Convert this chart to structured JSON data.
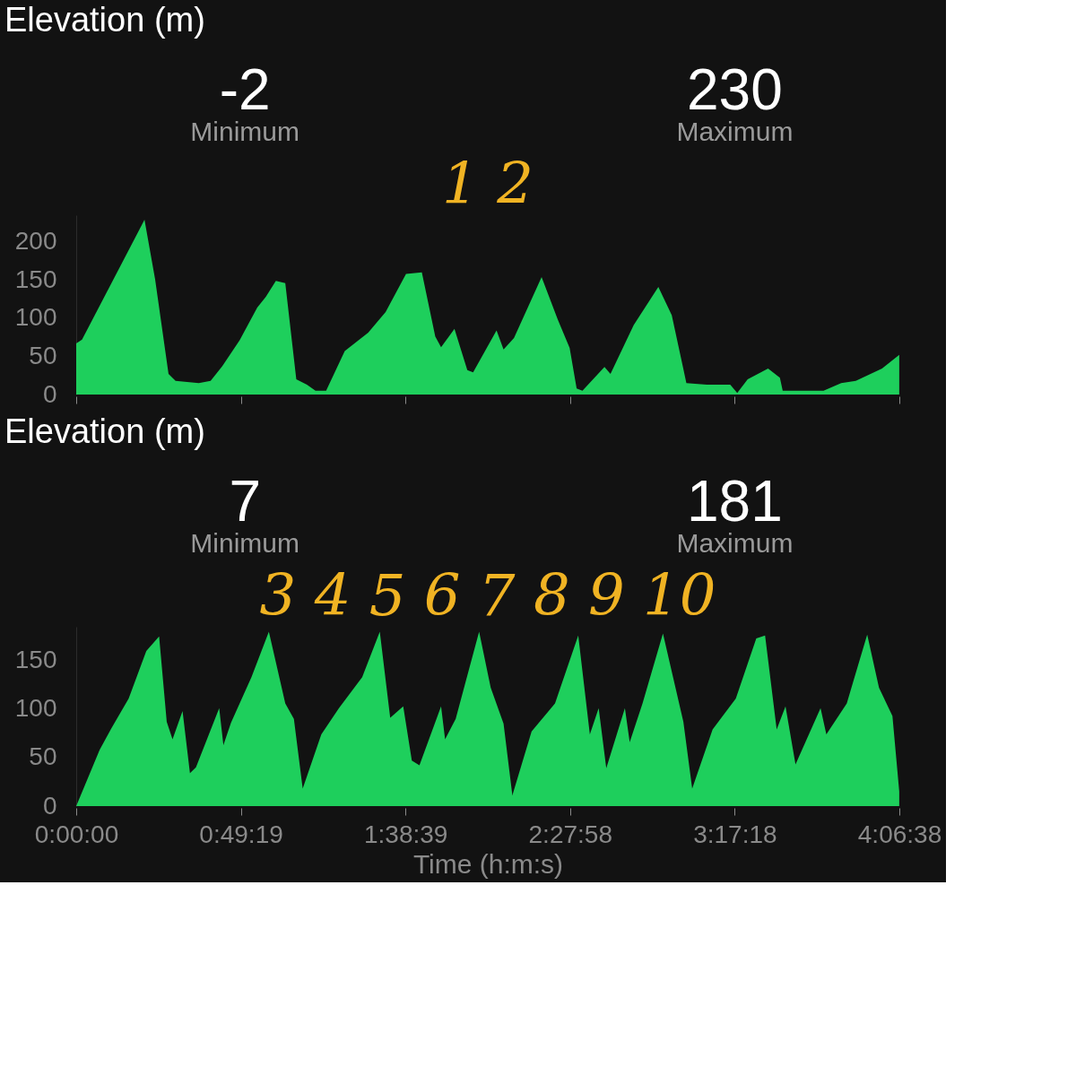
{
  "chart_data": [
    {
      "type": "area",
      "title": "Elevation (m)",
      "annotations": [
        "-2",
        "Minimum",
        "230",
        "Maximum",
        "1 2"
      ],
      "x": [
        0,
        0.029,
        0.341,
        0.394,
        0.461,
        0.496,
        0.612,
        0.671,
        0.729,
        0.816,
        0.904,
        0.947,
        0.997,
        1.044,
        1.099,
        1.152,
        1.195,
        1.248,
        1.341,
        1.458,
        1.545,
        1.647,
        1.726,
        1.793,
        1.822,
        1.889,
        1.953,
        1.982,
        2.099,
        2.134,
        2.186,
        2.324,
        2.405,
        2.464,
        2.499,
        2.528,
        2.638,
        2.668,
        2.784,
        2.907,
        2.974,
        3.047,
        3.149,
        3.266,
        3.301,
        3.353,
        3.455,
        3.514,
        3.528,
        3.732,
        3.82,
        3.893,
        4.024,
        4.11
      ],
      "series": [
        {
          "color": "#1ecf5c",
          "values": [
            67,
            72,
            229,
            151,
            27,
            18,
            15,
            18,
            37,
            71,
            114,
            128,
            149,
            146,
            20,
            13,
            5,
            5,
            57,
            81,
            108,
            158,
            160,
            76,
            62,
            86,
            32,
            29,
            84,
            59,
            74,
            154,
            98,
            61,
            8,
            5,
            36,
            27,
            91,
            141,
            104,
            15,
            13,
            13,
            2,
            20,
            34,
            22,
            5,
            5,
            15,
            18,
            34,
            52
          ]
        }
      ],
      "xlim": [
        0,
        4.11056
      ],
      "xticks": [
        {
          "value": 0,
          "label": null
        },
        {
          "value": 0.82194,
          "label": null
        },
        {
          "value": 1.64417,
          "label": null
        },
        {
          "value": 2.46611,
          "label": null
        },
        {
          "value": 3.28833,
          "label": null
        },
        {
          "value": 4.11056,
          "label": null
        }
      ],
      "ylim": [
        0,
        235
      ],
      "yticks": [
        0,
        50,
        100,
        150,
        200
      ],
      "tick_labels": "y"
    },
    {
      "type": "area",
      "title": "Elevation (m)",
      "xlabel": "Time (h:m:s)",
      "annotations": [
        "7",
        "Minimum",
        "181",
        "Maximum",
        "3 4 5 6 7 8 9 10"
      ],
      "x": [
        0,
        0.117,
        0.175,
        0.262,
        0.35,
        0.414,
        0.452,
        0.481,
        0.531,
        0.568,
        0.598,
        0.714,
        0.735,
        0.773,
        0.875,
        0.962,
        1.044,
        1.087,
        1.131,
        1.224,
        1.312,
        1.428,
        1.516,
        1.568,
        1.633,
        1.676,
        1.714,
        1.822,
        1.842,
        1.895,
        2.012,
        2.07,
        2.134,
        2.178,
        2.274,
        2.391,
        2.507,
        2.565,
        2.609,
        2.647,
        2.74,
        2.764,
        2.828,
        2.93,
        3.032,
        3.076,
        3.178,
        3.294,
        3.396,
        3.44,
        3.498,
        3.542,
        3.592,
        3.717,
        3.746,
        3.848,
        3.95,
        4.009,
        4.076,
        4.11
      ],
      "series": [
        {
          "color": "#1ecf5c",
          "values": [
            0,
            58,
            80,
            111,
            160,
            175,
            87,
            69,
            98,
            34,
            40,
            101,
            63,
            86,
            133,
            180,
            106,
            90,
            18,
            74,
            101,
            133,
            180,
            91,
            103,
            47,
            42,
            103,
            69,
            90,
            180,
            122,
            85,
            11,
            77,
            106,
            176,
            74,
            101,
            39,
            101,
            66,
            106,
            178,
            87,
            18,
            79,
            111,
            173,
            176,
            79,
            103,
            43,
            101,
            74,
            106,
            177,
            122,
            93,
            15
          ]
        }
      ],
      "xlim": [
        0,
        4.11056
      ],
      "xticks": [
        {
          "value": 0,
          "label": "0:00:00"
        },
        {
          "value": 0.82194,
          "label": "0:49:19"
        },
        {
          "value": 1.64417,
          "label": "1:38:39"
        },
        {
          "value": 2.46611,
          "label": "2:27:58"
        },
        {
          "value": 3.28833,
          "label": "3:17:18"
        },
        {
          "value": 4.11056,
          "label": "4:06:38"
        }
      ],
      "ylim": [
        0,
        185
      ],
      "yticks": [
        0,
        50,
        100,
        150
      ]
    }
  ]
}
